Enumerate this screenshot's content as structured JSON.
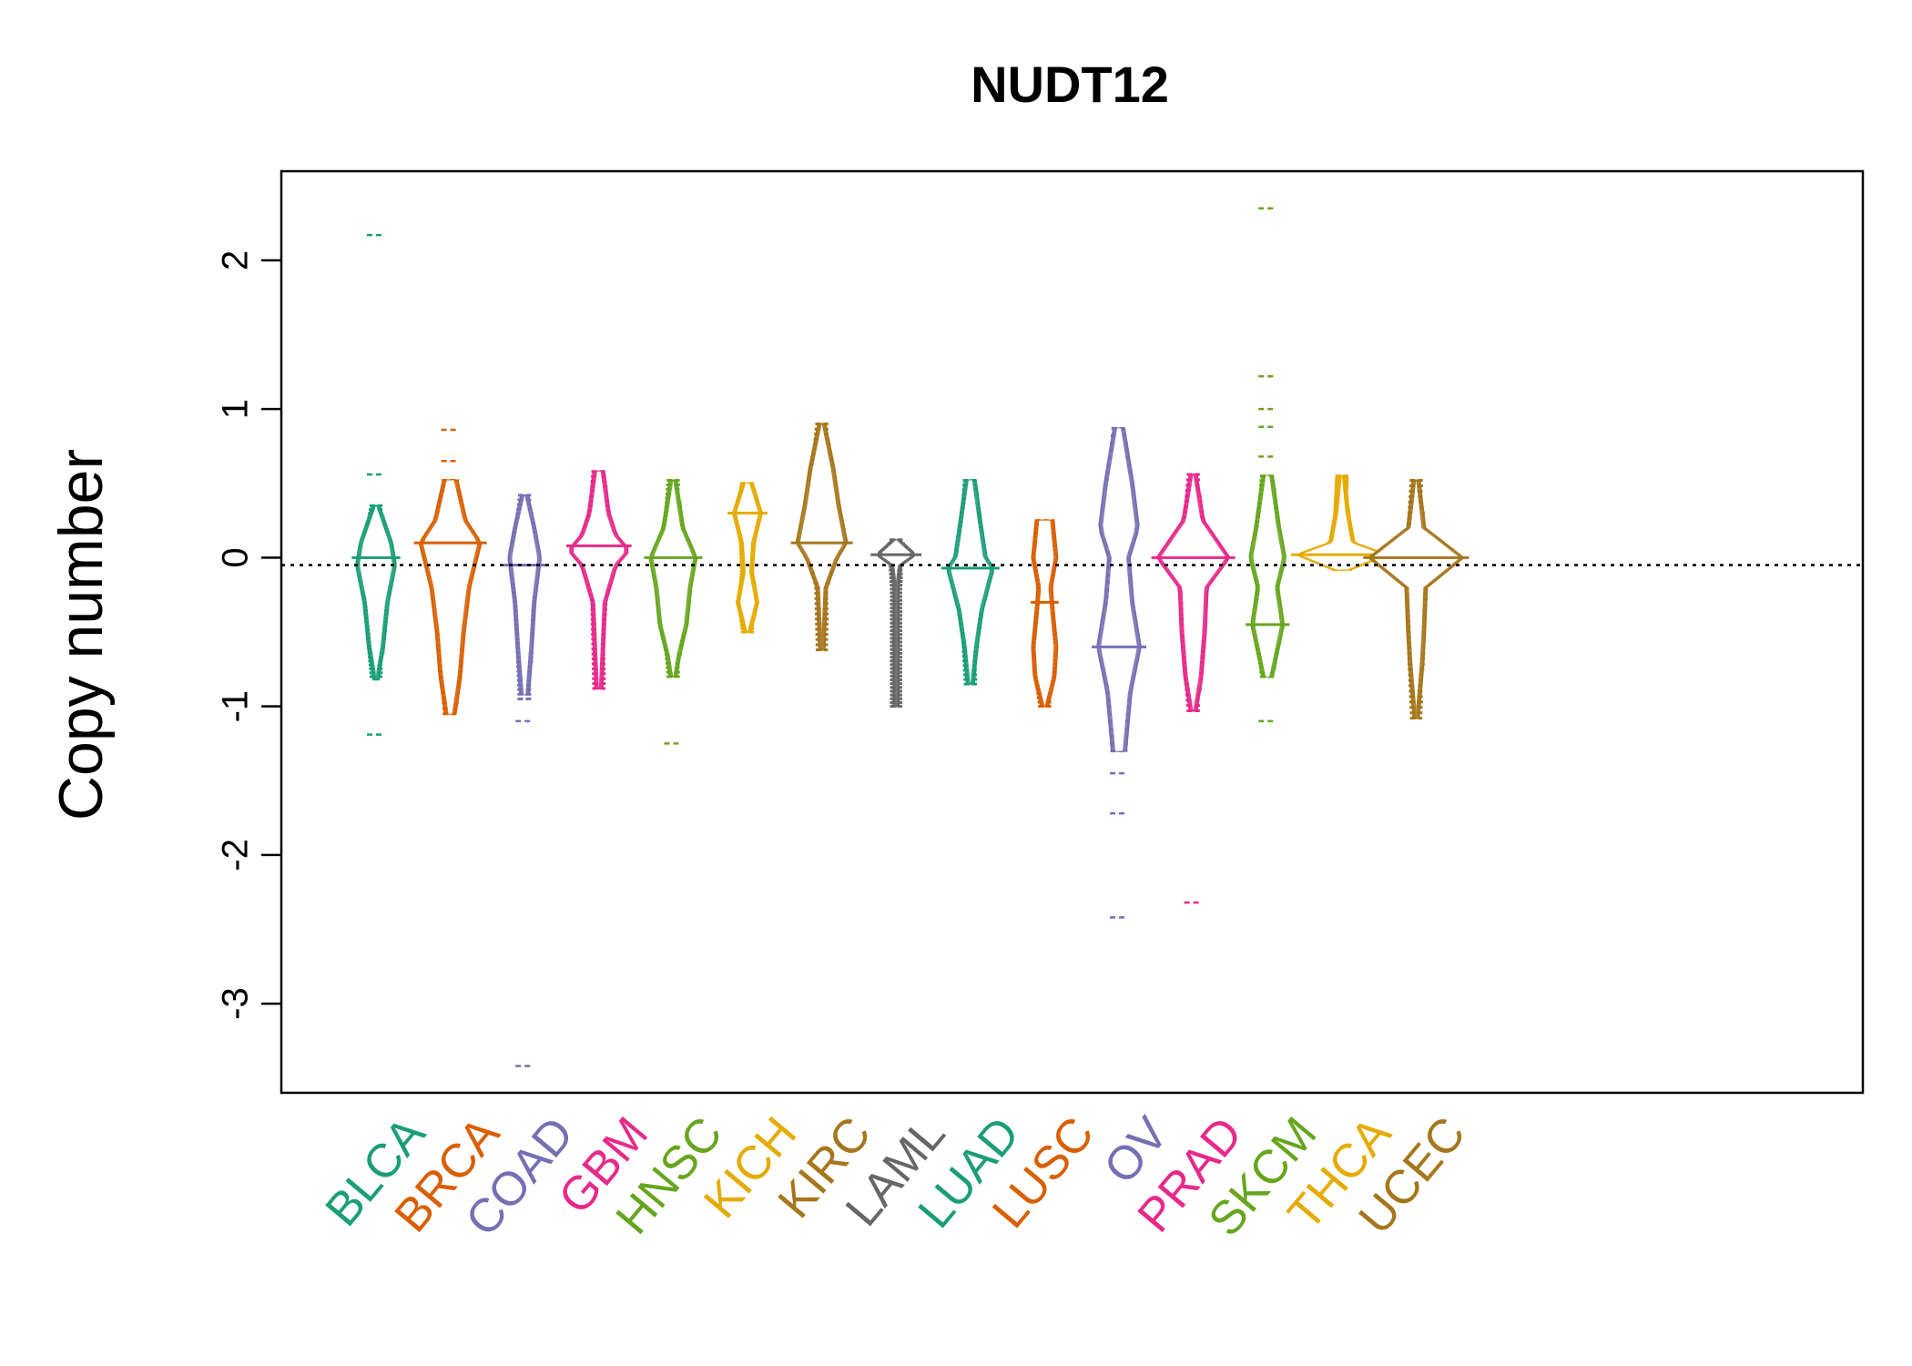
{
  "chart_data": {
    "type": "violin-strip",
    "title": "NUDT12",
    "ylabel": "Copy number",
    "xlabel": "",
    "ylim": [
      -3.6,
      2.6
    ],
    "yticks": [
      2,
      1,
      0,
      -1,
      -2,
      -3
    ],
    "ytick_labels": [
      "2",
      "1",
      "0",
      "-1",
      "-2",
      "-3"
    ],
    "reference_line": -0.05,
    "grid": false,
    "categories": [
      {
        "name": "BLCA",
        "color": "#1B9E77",
        "center": -0.05,
        "widest": 0.0,
        "dense": [
          -0.8,
          0.35
        ],
        "outliers": [
          2.17,
          0.56,
          -1.19
        ],
        "profile": [
          [
            0.35,
            4
          ],
          [
            0.1,
            18
          ],
          [
            -0.05,
            22
          ],
          [
            -0.3,
            14
          ],
          [
            -0.6,
            9
          ],
          [
            -0.82,
            3
          ]
        ]
      },
      {
        "name": "BRCA",
        "color": "#D95F02",
        "center": 0.02,
        "widest": 0.1,
        "dense": [
          -1.05,
          0.52
        ],
        "outliers": [
          0.86,
          0.65
        ],
        "profile": [
          [
            0.52,
            8
          ],
          [
            0.25,
            18
          ],
          [
            0.1,
            34
          ],
          [
            0.0,
            30
          ],
          [
            -0.2,
            22
          ],
          [
            -0.5,
            16
          ],
          [
            -0.8,
            12
          ],
          [
            -1.05,
            6
          ]
        ]
      },
      {
        "name": "COAD",
        "color": "#7570B3",
        "center": -0.05,
        "widest": -0.05,
        "dense": [
          -0.95,
          0.42
        ],
        "outliers": [
          -1.1,
          -3.42
        ],
        "profile": [
          [
            0.42,
            4
          ],
          [
            0.2,
            12
          ],
          [
            0.0,
            18
          ],
          [
            -0.1,
            16
          ],
          [
            -0.3,
            12
          ],
          [
            -0.6,
            9
          ],
          [
            -0.92,
            5
          ]
        ]
      },
      {
        "name": "GBM",
        "color": "#E7298A",
        "center": 0.05,
        "widest": 0.08,
        "dense": [
          -0.88,
          0.58
        ],
        "outliers": [],
        "profile": [
          [
            0.58,
            6
          ],
          [
            0.3,
            12
          ],
          [
            0.15,
            20
          ],
          [
            0.05,
            34
          ],
          [
            -0.05,
            20
          ],
          [
            -0.3,
            8
          ],
          [
            -0.6,
            6
          ],
          [
            -0.88,
            4
          ]
        ]
      },
      {
        "name": "HNSC",
        "color": "#66A61E",
        "center": -0.05,
        "widest": 0.0,
        "dense": [
          -0.8,
          0.52
        ],
        "outliers": [
          -1.25
        ],
        "profile": [
          [
            0.52,
            4
          ],
          [
            0.2,
            12
          ],
          [
            0.0,
            26
          ],
          [
            -0.2,
            20
          ],
          [
            -0.45,
            16
          ],
          [
            -0.65,
            8
          ],
          [
            -0.8,
            4
          ]
        ]
      },
      {
        "name": "KICH",
        "color": "#E6AB02",
        "center": 0.3,
        "widest": 0.3,
        "dense": [
          -0.5,
          0.5
        ],
        "outliers": [],
        "profile": [
          [
            0.5,
            6
          ],
          [
            0.3,
            16
          ],
          [
            0.1,
            8
          ],
          [
            -0.1,
            6
          ],
          [
            -0.3,
            12
          ],
          [
            -0.5,
            4
          ]
        ]
      },
      {
        "name": "KIRC",
        "color": "#A6761D",
        "center": 0.3,
        "widest": 0.1,
        "dense": [
          -0.62,
          0.9
        ],
        "outliers": [],
        "profile": [
          [
            0.9,
            4
          ],
          [
            0.6,
            14
          ],
          [
            0.35,
            20
          ],
          [
            0.1,
            28
          ],
          [
            0.0,
            18
          ],
          [
            -0.2,
            6
          ],
          [
            -0.62,
            3
          ]
        ]
      },
      {
        "name": "LAML",
        "color": "#666666",
        "center": 0.02,
        "widest": 0.02,
        "dense": [
          -1.0,
          0.12
        ],
        "outliers": [],
        "profile": [
          [
            0.12,
            4
          ],
          [
            0.02,
            22
          ],
          [
            -0.05,
            6
          ],
          [
            -0.2,
            3
          ],
          [
            -0.6,
            3
          ],
          [
            -1.0,
            3
          ]
        ]
      },
      {
        "name": "LUAD",
        "color": "#1B9E77",
        "center": -0.05,
        "widest": -0.07,
        "dense": [
          -0.85,
          0.52
        ],
        "outliers": [],
        "profile": [
          [
            0.52,
            6
          ],
          [
            0.25,
            12
          ],
          [
            0.0,
            18
          ],
          [
            -0.07,
            26
          ],
          [
            -0.35,
            14
          ],
          [
            -0.6,
            8
          ],
          [
            -0.85,
            4
          ]
        ]
      },
      {
        "name": "LUSC",
        "color": "#D95F02",
        "center": -0.25,
        "widest": -0.3,
        "dense": [
          -1.0,
          0.25
        ],
        "outliers": [],
        "profile": [
          [
            0.25,
            10
          ],
          [
            0.0,
            14
          ],
          [
            -0.2,
            8
          ],
          [
            -0.35,
            10
          ],
          [
            -0.6,
            14
          ],
          [
            -0.8,
            12
          ],
          [
            -1.0,
            4
          ]
        ]
      },
      {
        "name": "OV",
        "color": "#7570B3",
        "center": -0.4,
        "widest": -0.6,
        "dense": [
          -1.3,
          0.87
        ],
        "outliers": [
          -1.45,
          -1.72,
          -2.42
        ],
        "profile": [
          [
            0.87,
            6
          ],
          [
            0.5,
            16
          ],
          [
            0.2,
            22
          ],
          [
            0.0,
            12
          ],
          [
            -0.3,
            16
          ],
          [
            -0.6,
            24
          ],
          [
            -0.9,
            14
          ],
          [
            -1.3,
            8
          ]
        ]
      },
      {
        "name": "PRAD",
        "color": "#E7298A",
        "center": 0.0,
        "widest": 0.0,
        "dense": [
          -1.03,
          0.56
        ],
        "outliers": [
          -2.32
        ],
        "profile": [
          [
            0.56,
            4
          ],
          [
            0.25,
            12
          ],
          [
            0.0,
            40
          ],
          [
            -0.2,
            16
          ],
          [
            -0.5,
            14
          ],
          [
            -0.8,
            10
          ],
          [
            -1.03,
            4
          ]
        ]
      },
      {
        "name": "SKCM",
        "color": "#66A61E",
        "center": 0.0,
        "widest": -0.45,
        "dense": [
          -0.8,
          0.55
        ],
        "outliers": [
          2.35,
          1.22,
          1.0,
          0.88,
          0.68,
          -1.1
        ],
        "profile": [
          [
            0.55,
            6
          ],
          [
            0.2,
            14
          ],
          [
            0.0,
            20
          ],
          [
            -0.2,
            12
          ],
          [
            -0.45,
            18
          ],
          [
            -0.8,
            6
          ]
        ]
      },
      {
        "name": "THCA",
        "color": "#E6AB02",
        "center": 0.02,
        "widest": 0.02,
        "dense": [
          -0.08,
          0.55
        ],
        "outliers": [],
        "profile": [
          [
            0.55,
            4
          ],
          [
            0.3,
            8
          ],
          [
            0.1,
            14
          ],
          [
            0.02,
            50
          ],
          [
            -0.08,
            10
          ]
        ]
      },
      {
        "name": "UCEC",
        "color": "#A6761D",
        "center": 0.0,
        "widest": 0.0,
        "dense": [
          -1.08,
          0.52
        ],
        "outliers": [],
        "profile": [
          [
            0.52,
            4
          ],
          [
            0.2,
            10
          ],
          [
            0.0,
            52
          ],
          [
            -0.2,
            12
          ],
          [
            -0.5,
            10
          ],
          [
            -0.72,
            8
          ],
          [
            -1.08,
            3
          ]
        ]
      }
    ]
  }
}
